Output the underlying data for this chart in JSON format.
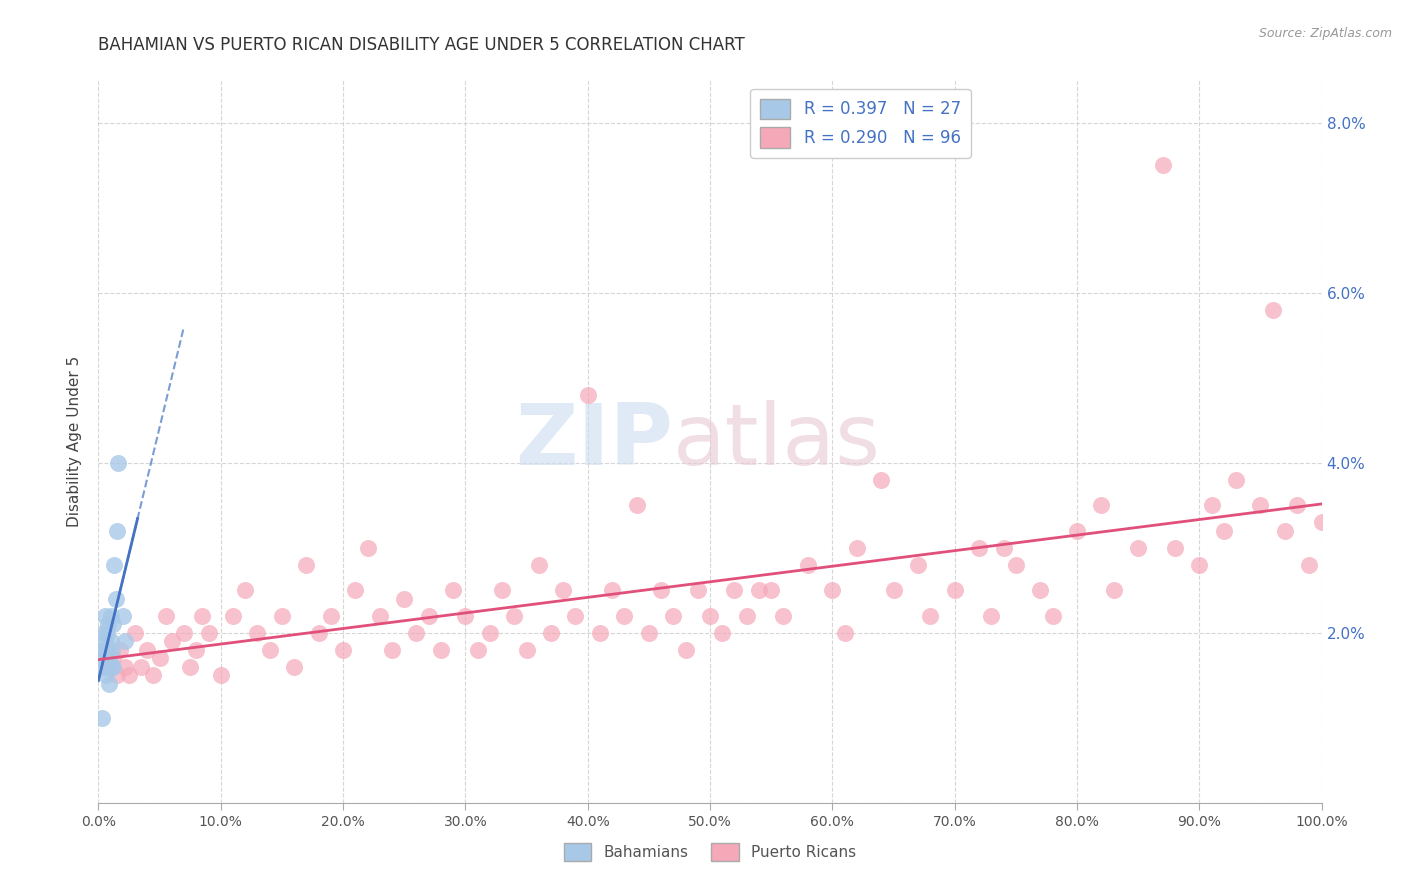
{
  "title": "BAHAMIAN VS PUERTO RICAN DISABILITY AGE UNDER 5 CORRELATION CHART",
  "source": "Source: ZipAtlas.com",
  "ylabel": "Disability Age Under 5",
  "xlim": [
    0.0,
    1.0
  ],
  "ylim": [
    0.0,
    0.085
  ],
  "yticks": [
    0.0,
    0.02,
    0.04,
    0.06,
    0.08
  ],
  "yticklabels": [
    "",
    "2.0%",
    "4.0%",
    "6.0%",
    "8.0%"
  ],
  "legend_r_bahamian": "R = 0.397",
  "legend_n_bahamian": "N = 27",
  "legend_r_puertoRican": "R = 0.290",
  "legend_n_puertoRican": "N = 96",
  "bahamian_color": "#a8c8e8",
  "puertoRican_color": "#f5a8b8",
  "bahamian_line_color": "#4472c4",
  "puertoRican_line_color": "#e0507a",
  "watermark_zip": "ZIP",
  "watermark_atlas": "atlas",
  "bah_x": [
    0.002,
    0.003,
    0.004,
    0.004,
    0.005,
    0.005,
    0.006,
    0.006,
    0.007,
    0.007,
    0.008,
    0.008,
    0.009,
    0.009,
    0.01,
    0.01,
    0.01,
    0.011,
    0.012,
    0.012,
    0.013,
    0.014,
    0.015,
    0.016,
    0.02,
    0.022,
    0.003
  ],
  "bah_y": [
    0.017,
    0.016,
    0.018,
    0.02,
    0.019,
    0.022,
    0.018,
    0.015,
    0.02,
    0.016,
    0.018,
    0.021,
    0.017,
    0.014,
    0.022,
    0.016,
    0.019,
    0.018,
    0.021,
    0.016,
    0.028,
    0.024,
    0.032,
    0.04,
    0.022,
    0.019,
    0.01
  ],
  "pr_x": [
    0.008,
    0.012,
    0.015,
    0.018,
    0.022,
    0.025,
    0.03,
    0.035,
    0.04,
    0.045,
    0.05,
    0.055,
    0.06,
    0.07,
    0.075,
    0.08,
    0.085,
    0.09,
    0.1,
    0.11,
    0.12,
    0.13,
    0.14,
    0.15,
    0.16,
    0.17,
    0.18,
    0.19,
    0.2,
    0.21,
    0.22,
    0.23,
    0.24,
    0.25,
    0.26,
    0.27,
    0.28,
    0.29,
    0.3,
    0.31,
    0.32,
    0.33,
    0.34,
    0.35,
    0.36,
    0.37,
    0.38,
    0.39,
    0.4,
    0.41,
    0.42,
    0.43,
    0.45,
    0.46,
    0.47,
    0.48,
    0.49,
    0.5,
    0.51,
    0.52,
    0.53,
    0.55,
    0.56,
    0.58,
    0.6,
    0.61,
    0.62,
    0.65,
    0.67,
    0.68,
    0.7,
    0.72,
    0.73,
    0.75,
    0.77,
    0.78,
    0.8,
    0.82,
    0.83,
    0.85,
    0.87,
    0.88,
    0.9,
    0.91,
    0.92,
    0.93,
    0.95,
    0.96,
    0.97,
    0.98,
    0.99,
    1.0,
    0.44,
    0.54,
    0.64,
    0.74
  ],
  "pr_y": [
    0.016,
    0.017,
    0.015,
    0.018,
    0.016,
    0.015,
    0.02,
    0.016,
    0.018,
    0.015,
    0.017,
    0.022,
    0.019,
    0.02,
    0.016,
    0.018,
    0.022,
    0.02,
    0.015,
    0.022,
    0.025,
    0.02,
    0.018,
    0.022,
    0.016,
    0.028,
    0.02,
    0.022,
    0.018,
    0.025,
    0.03,
    0.022,
    0.018,
    0.024,
    0.02,
    0.022,
    0.018,
    0.025,
    0.022,
    0.018,
    0.02,
    0.025,
    0.022,
    0.018,
    0.028,
    0.02,
    0.025,
    0.022,
    0.048,
    0.02,
    0.025,
    0.022,
    0.02,
    0.025,
    0.022,
    0.018,
    0.025,
    0.022,
    0.02,
    0.025,
    0.022,
    0.025,
    0.022,
    0.028,
    0.025,
    0.02,
    0.03,
    0.025,
    0.028,
    0.022,
    0.025,
    0.03,
    0.022,
    0.028,
    0.025,
    0.022,
    0.032,
    0.035,
    0.025,
    0.03,
    0.075,
    0.03,
    0.028,
    0.035,
    0.032,
    0.038,
    0.035,
    0.058,
    0.032,
    0.035,
    0.028,
    0.033,
    0.035,
    0.025,
    0.038,
    0.03
  ]
}
